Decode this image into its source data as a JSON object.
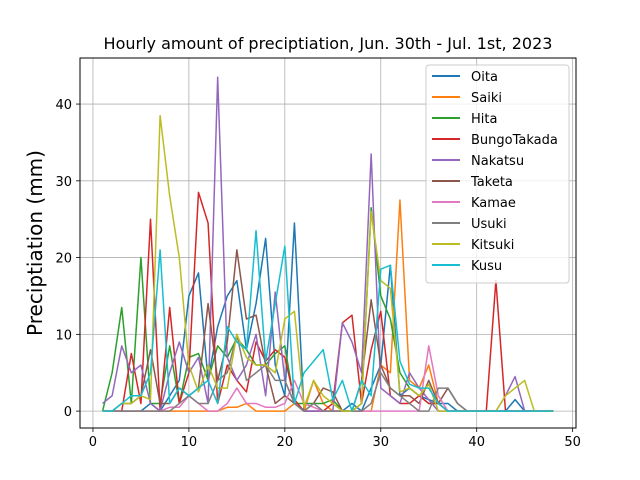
{
  "chart_data": {
    "type": "line",
    "title": "Hourly amount of preciptiation, Jun. 30th - Jul. 1st, 2023",
    "xlabel": "",
    "ylabel": "Preciptiation (mm)",
    "xlim": [
      -1.35,
      50.35
    ],
    "ylim": [
      -2.2,
      46.0
    ],
    "xticks": [
      0,
      10,
      20,
      30,
      40,
      50
    ],
    "yticks": [
      0,
      10,
      20,
      30,
      40
    ],
    "grid": true,
    "legend_position": "upper right",
    "x": [
      1,
      2,
      3,
      4,
      5,
      6,
      7,
      8,
      9,
      10,
      11,
      12,
      13,
      14,
      15,
      16,
      17,
      18,
      19,
      20,
      21,
      22,
      23,
      24,
      25,
      26,
      27,
      28,
      29,
      30,
      31,
      32,
      33,
      34,
      35,
      36,
      37,
      38,
      39,
      40,
      41,
      42,
      43,
      44,
      45,
      46,
      47,
      48
    ],
    "series": [
      {
        "name": "Oita",
        "color": "#1f77b4",
        "values": [
          0,
          0,
          0,
          0,
          0,
          1,
          0,
          2,
          4,
          15,
          18,
          4,
          11,
          15,
          17,
          8,
          14,
          22.5,
          6,
          2,
          24.5,
          0,
          0,
          0,
          0,
          0,
          1,
          0,
          3,
          6,
          19,
          2,
          3,
          2,
          1.5,
          1,
          1,
          0,
          0,
          0,
          0,
          0,
          0,
          1.5,
          0,
          0,
          0,
          0
        ]
      },
      {
        "name": "Saiki",
        "color": "#ff7f0e",
        "values": [
          0,
          0,
          0,
          0,
          0,
          0,
          0,
          0,
          0,
          0,
          0,
          0,
          0,
          0.5,
          0.5,
          1,
          0,
          0,
          0,
          0,
          1,
          0,
          4,
          1,
          0,
          0,
          0,
          0,
          0,
          6,
          5,
          27.5,
          4,
          3,
          6,
          1,
          0,
          0,
          0,
          0,
          0,
          0,
          0,
          0,
          0,
          0,
          0,
          0
        ]
      },
      {
        "name": "Hita",
        "color": "#2ca02c",
        "values": [
          0,
          5,
          13.5,
          1,
          20,
          1,
          1,
          8.5,
          1,
          7,
          7.5,
          4,
          8.5,
          7,
          9.5,
          8,
          6,
          6,
          7.5,
          8.5,
          1,
          1,
          1,
          1,
          1.5,
          0,
          0,
          1,
          26.5,
          15,
          12,
          5,
          3,
          2,
          1,
          1,
          0,
          0,
          0,
          0,
          0,
          0,
          0,
          0,
          0,
          0,
          0,
          0
        ]
      },
      {
        "name": "BungoTakada",
        "color": "#d62728",
        "values": [
          0,
          0,
          0,
          7.5,
          1,
          25,
          0,
          13.5,
          1,
          5,
          28.5,
          24.5,
          1,
          6,
          4,
          2.5,
          9,
          6.5,
          8,
          7,
          1.5,
          0,
          0,
          0,
          1,
          11.5,
          12.5,
          1,
          8,
          13,
          2,
          1,
          1,
          2,
          1,
          1,
          0,
          0,
          0,
          0,
          0,
          17,
          0,
          0,
          0,
          0,
          0,
          0
        ]
      },
      {
        "name": "Nakatsu",
        "color": "#9467bd",
        "values": [
          1,
          2,
          8.5,
          5,
          6,
          1,
          0,
          5,
          9,
          5,
          7,
          1,
          43.5,
          7,
          4,
          6,
          10,
          2,
          15.5,
          4,
          1,
          0,
          0,
          0,
          0,
          11.5,
          9,
          5,
          33.5,
          3,
          2,
          1,
          5,
          3,
          1.5,
          0,
          0,
          0,
          0,
          0,
          0,
          0,
          2,
          4.5,
          0,
          0,
          0,
          0
        ]
      },
      {
        "name": "Taketa",
        "color": "#8c564b",
        "values": [
          0,
          0,
          1,
          1,
          2,
          8,
          1,
          1,
          3,
          2,
          3,
          14,
          4,
          9,
          21,
          12,
          12.5,
          6,
          1,
          2,
          1,
          0,
          1,
          3,
          2.5,
          0,
          0,
          4,
          14.5,
          6,
          3,
          2,
          2,
          1,
          4,
          1,
          3,
          1,
          0,
          0,
          0,
          0,
          0,
          0,
          0,
          0,
          0,
          0
        ]
      },
      {
        "name": "Kamae",
        "color": "#e377c2",
        "values": [
          0,
          0,
          0,
          0,
          0,
          0,
          0,
          0.5,
          0.5,
          2,
          1,
          0,
          0,
          1,
          3,
          1,
          1,
          0.5,
          0.5,
          1,
          4,
          1,
          0.5,
          0,
          0,
          0,
          0,
          0,
          0,
          0,
          0,
          0,
          0,
          0,
          8.5,
          2,
          0,
          0,
          0,
          0,
          0,
          0,
          0,
          0,
          0,
          0,
          0,
          0
        ]
      },
      {
        "name": "Usuki",
        "color": "#7f7f7f",
        "values": [
          0,
          0,
          0,
          0,
          0,
          0,
          0,
          0,
          1,
          2,
          1,
          1,
          4,
          5,
          10,
          4,
          5,
          6,
          4,
          4,
          1,
          0,
          1,
          0,
          0,
          0,
          0,
          0,
          1,
          5,
          3,
          2,
          1,
          0,
          0,
          3,
          3,
          1,
          0,
          0,
          0,
          0,
          0,
          0,
          0,
          0,
          0,
          0
        ]
      },
      {
        "name": "Kitsuki",
        "color": "#bcbd22",
        "values": [
          0,
          0,
          1,
          1,
          2,
          1.5,
          38.5,
          28,
          20,
          6,
          2.5,
          6,
          3,
          3,
          10,
          7,
          6,
          6,
          5,
          12,
          13,
          0.5,
          4,
          2,
          1,
          0,
          0,
          1,
          26,
          17,
          16,
          2.5,
          3,
          2,
          3.5,
          0,
          0,
          0,
          0,
          0,
          0,
          0,
          2,
          3,
          4,
          0,
          0,
          0
        ]
      },
      {
        "name": "Kusu",
        "color": "#17becf",
        "values": [
          0,
          0,
          1,
          2,
          2,
          5,
          21,
          1,
          3,
          2,
          3,
          4,
          1,
          11,
          9,
          8,
          23.5,
          6.5,
          14,
          21.5,
          1,
          5,
          6.5,
          8,
          1.5,
          4,
          0,
          4,
          2,
          18.5,
          19,
          6.5,
          3.5,
          3,
          3,
          1,
          0,
          0,
          0,
          0,
          0,
          0,
          0,
          0,
          0,
          0,
          0,
          0
        ]
      }
    ]
  }
}
